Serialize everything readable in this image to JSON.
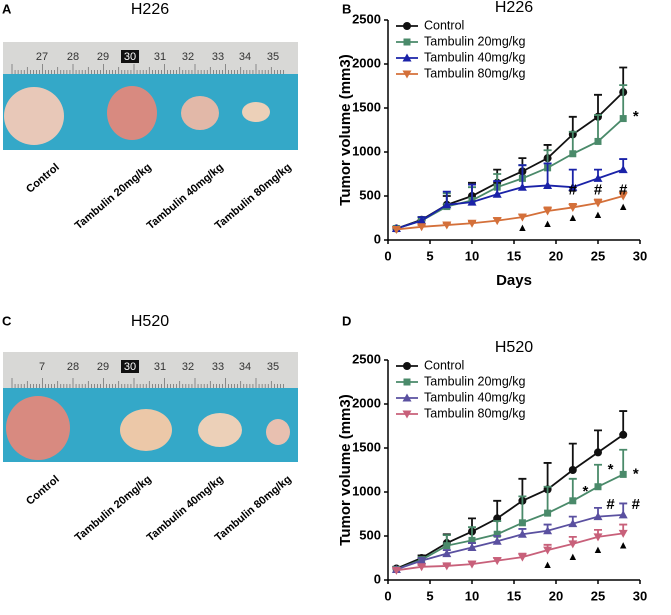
{
  "panel_labels": [
    "A",
    "B",
    "C",
    "D"
  ],
  "photos": [
    {
      "title": "H226",
      "ruler": [
        "27",
        "28",
        "29",
        "30",
        "31",
        "32",
        "33",
        "34",
        "35"
      ],
      "labels": [
        "Control",
        "Tambulin 20mg/kg",
        "Tambulin 40mg/kg",
        "Tambulin 80mg/kg"
      ]
    },
    {
      "title": "H520",
      "ruler": [
        "7",
        "28",
        "29",
        "30",
        "31",
        "32",
        "33",
        "34",
        "35"
      ],
      "labels": [
        "Control",
        "Tambulin 20mg/kg",
        "Tambulin 40mg/kg",
        "Tambulin 80mg/kg"
      ]
    }
  ],
  "chart_data": [
    {
      "type": "line",
      "title": "H226",
      "x_label": "Days",
      "y_label": "Tumor volume (mm3)",
      "x": [
        1,
        4,
        7,
        10,
        13,
        16,
        19,
        22,
        25,
        28
      ],
      "xlim": [
        0,
        30
      ],
      "xticks": [
        0,
        5,
        10,
        15,
        20,
        25,
        30
      ],
      "ylim": [
        0,
        2500
      ],
      "yticks": [
        0,
        500,
        1000,
        1500,
        2000,
        2500
      ],
      "legend": "top-left",
      "series": [
        {
          "name": "Control",
          "color": "#111111",
          "marker": "circle",
          "values": [
            130,
            230,
            400,
            500,
            650,
            780,
            930,
            1200,
            1400,
            1680
          ],
          "errors": [
            20,
            30,
            100,
            150,
            150,
            150,
            150,
            200,
            250,
            280
          ]
        },
        {
          "name": "Tambulin 20mg/kg",
          "color": "#4a8a6a",
          "marker": "square",
          "values": [
            130,
            220,
            380,
            450,
            600,
            700,
            820,
            980,
            1120,
            1380
          ],
          "errors": [
            20,
            40,
            150,
            150,
            150,
            150,
            200,
            250,
            300,
            380
          ]
        },
        {
          "name": "Tambulin 40mg/kg",
          "color": "#1a22a8",
          "marker": "triangle-up",
          "values": [
            130,
            220,
            400,
            430,
            520,
            600,
            620,
            600,
            700,
            800
          ],
          "errors": [
            20,
            40,
            150,
            200,
            150,
            250,
            250,
            200,
            100,
            120
          ]
        },
        {
          "name": "Tambulin 80mg/kg",
          "color": "#d4703a",
          "marker": "triangle-down",
          "values": [
            120,
            150,
            170,
            190,
            220,
            260,
            330,
            370,
            420,
            500
          ],
          "errors": [
            20,
            20,
            20,
            20,
            30,
            30,
            40,
            40,
            40,
            40
          ]
        }
      ],
      "annotations": [
        {
          "text": "*",
          "x": 29.5,
          "y": 1400
        },
        {
          "text": "#",
          "x": 22,
          "y": 560
        },
        {
          "text": "#",
          "x": 25,
          "y": 560
        },
        {
          "text": "#",
          "x": 28,
          "y": 560
        },
        {
          "text": "▲",
          "x": 16,
          "y": 136
        },
        {
          "text": "▲",
          "x": 19,
          "y": 180
        },
        {
          "text": "▲",
          "x": 22,
          "y": 250
        },
        {
          "text": "▲",
          "x": 25,
          "y": 285
        },
        {
          "text": "▲",
          "x": 28,
          "y": 375
        }
      ]
    },
    {
      "type": "line",
      "title": "H520",
      "x_label": "Days",
      "y_label": "Tumor volume (mm3)",
      "x": [
        1,
        4,
        7,
        10,
        13,
        16,
        19,
        22,
        25,
        28
      ],
      "xlim": [
        0,
        30
      ],
      "xticks": [
        0,
        5,
        10,
        15,
        20,
        25,
        30
      ],
      "ylim": [
        0,
        2500
      ],
      "yticks": [
        0,
        500,
        1000,
        1500,
        2000,
        2500
      ],
      "legend": "top-left",
      "series": [
        {
          "name": "Control",
          "color": "#111111",
          "marker": "circle",
          "values": [
            130,
            250,
            420,
            550,
            700,
            900,
            1030,
            1250,
            1450,
            1650
          ],
          "errors": [
            20,
            30,
            100,
            150,
            200,
            250,
            300,
            300,
            250,
            270
          ]
        },
        {
          "name": "Tambulin 20mg/kg",
          "color": "#4a8a6a",
          "marker": "square",
          "values": [
            120,
            230,
            390,
            450,
            520,
            650,
            760,
            900,
            1060,
            1200
          ],
          "errors": [
            20,
            30,
            120,
            150,
            150,
            300,
            300,
            250,
            250,
            280
          ]
        },
        {
          "name": "Tambulin 40mg/kg",
          "color": "#5a50a0",
          "marker": "triangle-up",
          "values": [
            120,
            220,
            300,
            370,
            440,
            520,
            560,
            640,
            720,
            740
          ],
          "errors": [
            20,
            30,
            40,
            50,
            60,
            60,
            70,
            80,
            100,
            130
          ]
        },
        {
          "name": "Tambulin 80mg/kg",
          "color": "#c8607a",
          "marker": "triangle-down",
          "values": [
            110,
            150,
            160,
            180,
            220,
            260,
            340,
            410,
            490,
            530
          ],
          "errors": [
            20,
            20,
            20,
            30,
            30,
            40,
            60,
            80,
            80,
            100
          ]
        }
      ],
      "annotations": [
        {
          "text": "*",
          "x": 23.5,
          "y": 1000
        },
        {
          "text": "*",
          "x": 26.5,
          "y": 1250
        },
        {
          "text": "*",
          "x": 29.5,
          "y": 1200
        },
        {
          "text": "#",
          "x": 26.5,
          "y": 850
        },
        {
          "text": "#",
          "x": 29.5,
          "y": 850
        },
        {
          "text": "▲",
          "x": 19,
          "y": 170
        },
        {
          "text": "▲",
          "x": 22,
          "y": 260
        },
        {
          "text": "▲",
          "x": 25,
          "y": 340
        },
        {
          "text": "▲",
          "x": 28,
          "y": 390
        }
      ]
    }
  ]
}
